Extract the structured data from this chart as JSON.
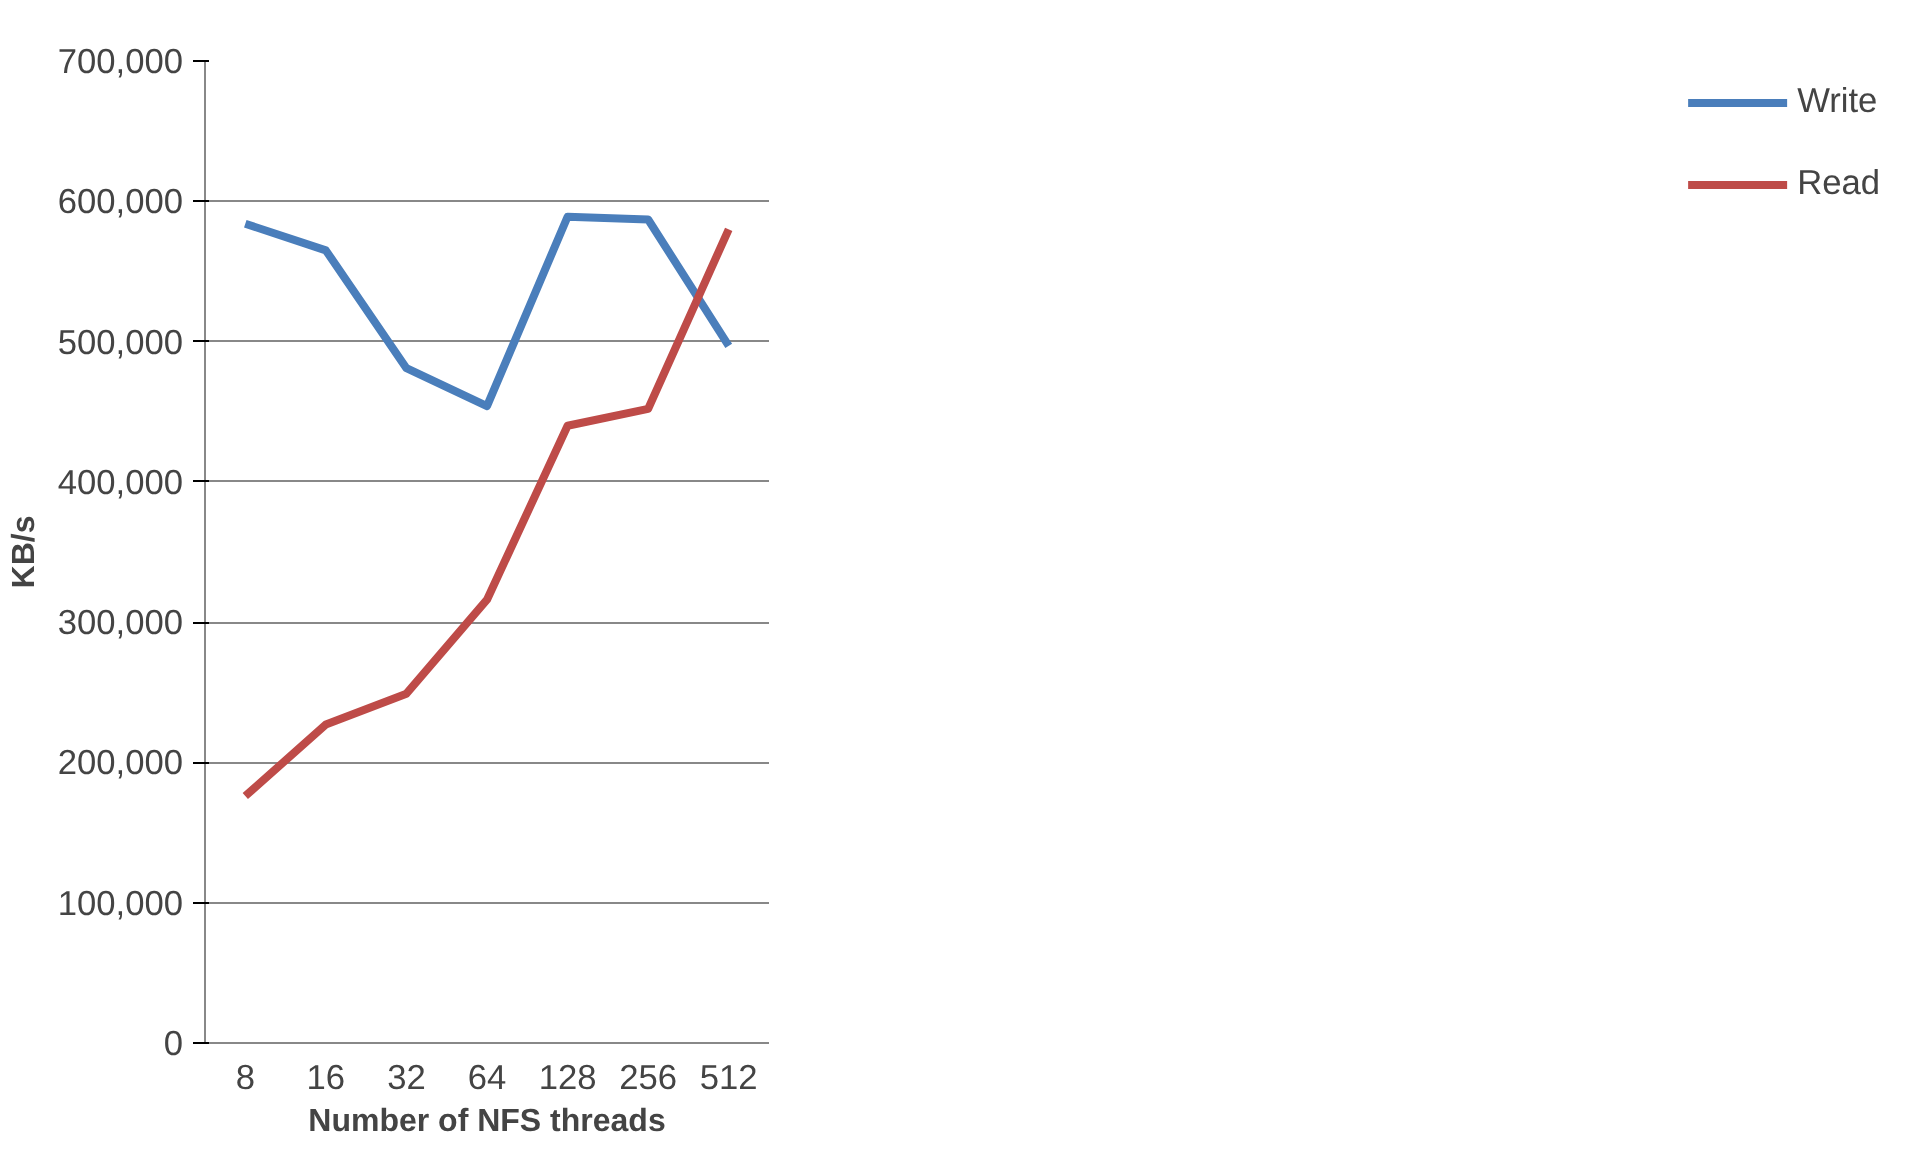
{
  "chart_data": {
    "type": "line",
    "xlabel": "Number of NFS threads",
    "ylabel": "KB/s",
    "categories": [
      "8",
      "16",
      "32",
      "64",
      "128",
      "256",
      "512"
    ],
    "series": [
      {
        "name": "Write",
        "color": "#4a7ebb",
        "values": [
          584000,
          565000,
          481000,
          454000,
          589000,
          587000,
          497000
        ]
      },
      {
        "name": "Read",
        "color": "#be4b48",
        "values": [
          176000,
          227000,
          249000,
          316000,
          440000,
          452000,
          580000
        ]
      }
    ],
    "ylim": [
      0,
      700000
    ],
    "yticks": [
      {
        "value": 0,
        "label": "0"
      },
      {
        "value": 100000,
        "label": "100,000"
      },
      {
        "value": 200000,
        "label": "200,000"
      },
      {
        "value": 300000,
        "label": "300,000"
      },
      {
        "value": 400000,
        "label": "400,000"
      },
      {
        "value": 500000,
        "label": "500,000"
      },
      {
        "value": 600000,
        "label": "600,000"
      },
      {
        "value": 700000,
        "label": "700,000"
      }
    ],
    "grid": "y",
    "legend": "right",
    "marker": "none",
    "line_style": "solid"
  }
}
